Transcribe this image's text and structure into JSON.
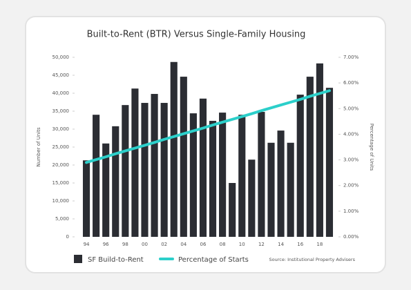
{
  "chart_data": {
    "type": "bar_line",
    "title": "Built-to-Rent (BTR) Versus Single-Family Housing",
    "y_label": "Number of Units",
    "y2_label": "Percentage of Units",
    "source": "Source: Institutional Property Advisers",
    "categories": [
      "94",
      null,
      "96",
      null,
      "98",
      null,
      "00",
      null,
      "02",
      null,
      "04",
      null,
      "06",
      null,
      "08",
      null,
      "10",
      null,
      "12",
      null,
      "14",
      null,
      "16",
      null,
      "18",
      null
    ],
    "series": [
      {
        "name": "SF Build-to-Rent",
        "color": "#2b2d33",
        "type": "bar",
        "values": [
          21300,
          34000,
          26000,
          30800,
          36700,
          41300,
          37300,
          39800,
          37300,
          48700,
          44600,
          34400,
          38500,
          32300,
          34600,
          15000,
          34000,
          21500,
          34800,
          26200,
          29600,
          26200,
          39600,
          44600,
          48300,
          41500
        ]
      },
      {
        "name": "Percentage of Starts",
        "color": "#2ccfca",
        "type": "line",
        "axis": "y2",
        "values": [
          2.9,
          3.01,
          3.12,
          3.24,
          3.35,
          3.46,
          3.57,
          3.68,
          3.8,
          3.91,
          4.02,
          4.13,
          4.24,
          4.36,
          4.47,
          4.58,
          4.69,
          4.8,
          4.92,
          5.03,
          5.14,
          5.25,
          5.36,
          5.48,
          5.59,
          5.7
        ]
      }
    ],
    "ylim": [
      0,
      50000
    ],
    "yticks": [
      0,
      {
        "value": 5000,
        "label": "5,000"
      },
      {
        "value": 10000,
        "label": "10,000"
      },
      {
        "value": 15000,
        "label": "15,000"
      },
      {
        "value": 20000,
        "label": "20,000"
      },
      {
        "value": 25000,
        "label": "25,000"
      },
      {
        "value": 30000,
        "label": "30,000"
      },
      {
        "value": 35000,
        "label": "35,000"
      },
      {
        "value": 40000,
        "label": "40,000"
      },
      {
        "value": 45000,
        "label": "45,000"
      },
      {
        "value": 50000,
        "label": "50,000"
      }
    ],
    "y2lim": [
      0,
      7
    ],
    "y2ticks": [
      {
        "value": 0,
        "label": "0.00%"
      },
      {
        "value": 1,
        "label": "1.00%"
      },
      {
        "value": 2,
        "label": "2.00%"
      },
      {
        "value": 3,
        "label": "3.00%"
      },
      {
        "value": 4,
        "label": "4.00%"
      },
      {
        "value": 5,
        "label": "5.00%"
      },
      {
        "value": 6,
        "label": "6.00%"
      },
      {
        "value": 7,
        "label": "7.00%"
      }
    ]
  }
}
